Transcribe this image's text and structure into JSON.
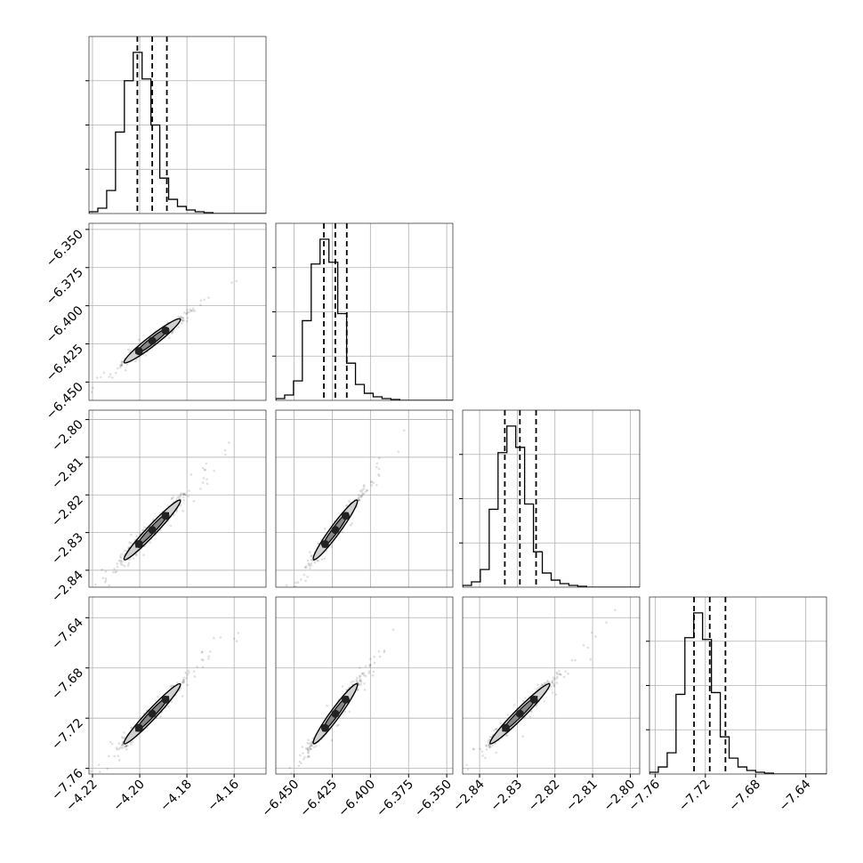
{
  "chart_data": {
    "type": "corner",
    "parameters": [
      {
        "ticks": [
          -4.22,
          -4.2,
          -4.18,
          -4.16
        ],
        "tick_labels": [
          "−4.22",
          "−4.20",
          "−4.18",
          "−4.16"
        ],
        "range": [
          -4.2215,
          -4.1465
        ],
        "quantiles": [
          -4.201,
          -4.1947,
          -4.1885
        ]
      },
      {
        "ticks": [
          -6.45,
          -6.425,
          -6.4,
          -6.375,
          -6.35
        ],
        "tick_labels": [
          "−6.450",
          "−6.425",
          "−6.400",
          "−6.375",
          "−6.350"
        ],
        "range": [
          -6.462,
          -6.346
        ],
        "quantiles": [
          -6.4305,
          -6.423,
          -6.4155
        ]
      },
      {
        "ticks": [
          -2.84,
          -2.83,
          -2.82,
          -2.81,
          -2.8
        ],
        "tick_labels": [
          "−2.84",
          "−2.83",
          "−2.82",
          "−2.81",
          "−2.80"
        ],
        "range": [
          -2.8445,
          -2.7975
        ],
        "quantiles": [
          -2.8333,
          -2.8293,
          -2.825
        ]
      },
      {
        "ticks": [
          -7.76,
          -7.72,
          -7.68,
          -7.64
        ],
        "tick_labels": [
          "−7.76",
          "−7.72",
          "−7.68",
          "−7.64"
        ],
        "range": [
          -7.7645,
          -7.6235
        ],
        "quantiles": [
          -7.729,
          -7.7165,
          -7.704
        ]
      }
    ],
    "histograms": [
      {
        "bins": 20,
        "counts": [
          0.01,
          0.03,
          0.13,
          0.46,
          0.75,
          0.91,
          0.76,
          0.5,
          0.2,
          0.08,
          0.04,
          0.02,
          0.01,
          0.005,
          0,
          0,
          0,
          0,
          0,
          0
        ]
      },
      {
        "bins": 20,
        "counts": [
          0.01,
          0.03,
          0.11,
          0.45,
          0.77,
          0.91,
          0.78,
          0.49,
          0.21,
          0.09,
          0.04,
          0.02,
          0.01,
          0.005,
          0,
          0,
          0,
          0,
          0,
          0
        ]
      },
      {
        "bins": 20,
        "counts": [
          0.01,
          0.03,
          0.1,
          0.44,
          0.76,
          0.91,
          0.79,
          0.47,
          0.2,
          0.08,
          0.04,
          0.02,
          0.01,
          0.005,
          0,
          0,
          0,
          0,
          0,
          0
        ]
      },
      {
        "bins": 20,
        "counts": [
          0.01,
          0.04,
          0.12,
          0.45,
          0.77,
          0.91,
          0.76,
          0.46,
          0.21,
          0.09,
          0.04,
          0.02,
          0.01,
          0.005,
          0,
          0,
          0,
          0,
          0,
          0
        ]
      }
    ],
    "correlation": 0.98,
    "xlabels": [
      "",
      "",
      "",
      ""
    ],
    "ylabels": [
      "",
      "",
      "",
      ""
    ],
    "grid": true,
    "quantile_levels": [
      0.16,
      0.5,
      0.84
    ]
  },
  "colors": {
    "line": "#000000",
    "grid": "#b0b0b0",
    "frame": "#000000"
  }
}
